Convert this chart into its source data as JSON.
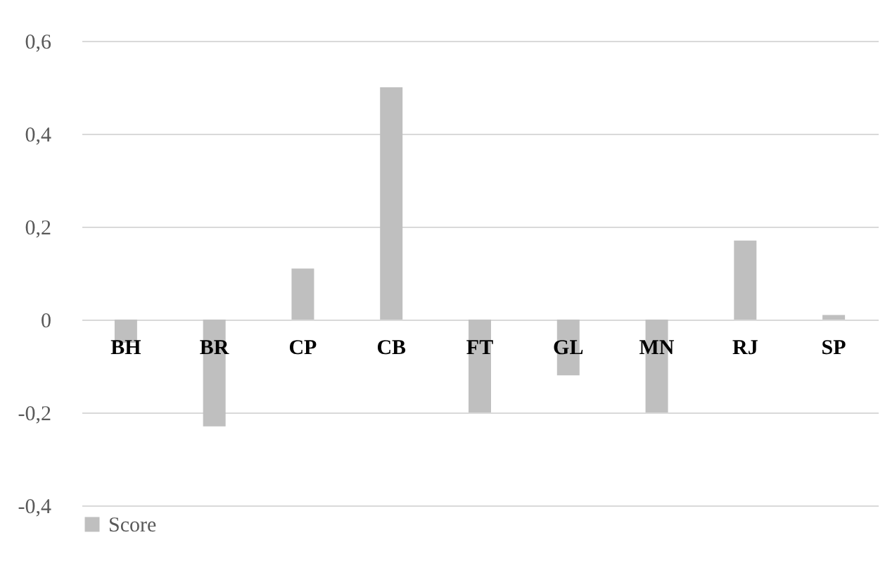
{
  "chart_data": {
    "type": "bar",
    "categories": [
      "BH",
      "BR",
      "CP",
      "CB",
      "FT",
      "GL",
      "MN",
      "RJ",
      "SP"
    ],
    "series": [
      {
        "name": "Score",
        "color": "#bfbfbf",
        "values": [
          -0.05,
          -0.23,
          0.11,
          0.5,
          -0.2,
          -0.12,
          -0.2,
          0.17,
          0.01
        ]
      }
    ],
    "ylim": [
      -0.4,
      0.6
    ],
    "yticks": [
      {
        "value": -0.4,
        "label": "-0,4"
      },
      {
        "value": -0.2,
        "label": "-0,2"
      },
      {
        "value": 0,
        "label": "0"
      },
      {
        "value": 0.2,
        "label": "0,2"
      },
      {
        "value": 0.4,
        "label": "0,4"
      },
      {
        "value": 0.6,
        "label": "0,6"
      }
    ],
    "grid": "y",
    "legend": "bottom"
  }
}
